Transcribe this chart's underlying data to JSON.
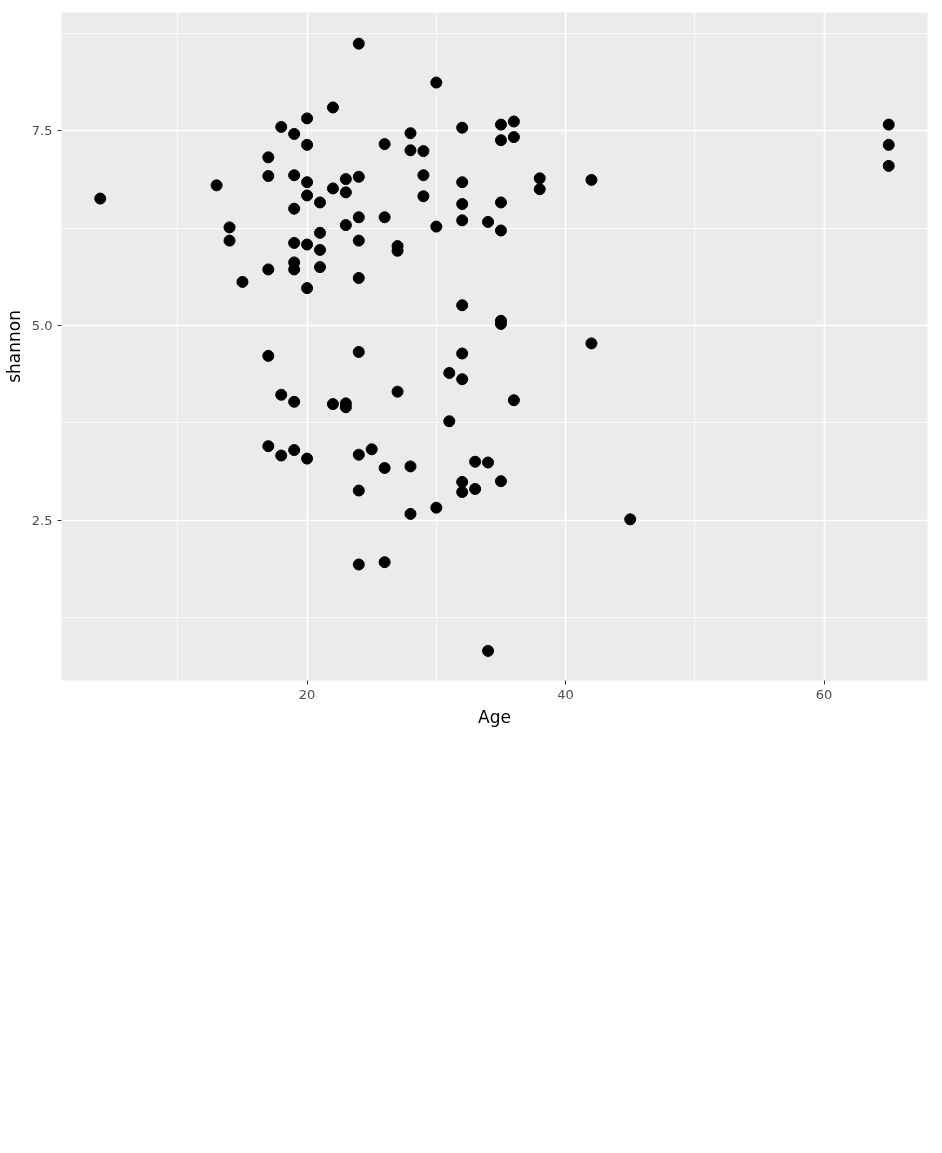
{
  "chart_data": {
    "type": "scatter",
    "xlabel": "Age",
    "ylabel": "shannon",
    "xlim": [
      1,
      68
    ],
    "ylim": [
      0.44,
      9.02
    ],
    "xticks": [
      20,
      40,
      60
    ],
    "yticks": [
      {
        "value": 2.5,
        "label": "2.5"
      },
      {
        "value": 5.0,
        "label": "5.0"
      },
      {
        "value": 7.5,
        "label": "7.5"
      }
    ],
    "grid": true,
    "marker": "circle",
    "series": [
      {
        "color": "#000000",
        "x": [
          4,
          13,
          14,
          14,
          15,
          17,
          17,
          17,
          17,
          17,
          18,
          18,
          18,
          19,
          19,
          19,
          19,
          19,
          19,
          19,
          19,
          20,
          20,
          20,
          20,
          20,
          20,
          20,
          21,
          21,
          21,
          21,
          22,
          22,
          22,
          23,
          23,
          23,
          23,
          23,
          24,
          24,
          24,
          24,
          24,
          24,
          24,
          24,
          24,
          25,
          26,
          26,
          26,
          26,
          27,
          27,
          27,
          28,
          28,
          28,
          28,
          29,
          29,
          29,
          30,
          30,
          30,
          31,
          31,
          32,
          32,
          32,
          32,
          32,
          32,
          32,
          32,
          32,
          33,
          33,
          34,
          34,
          34,
          35,
          35,
          35,
          35,
          35,
          35,
          35,
          36,
          36,
          36,
          38,
          38,
          42,
          42,
          45,
          65,
          65,
          65
        ],
        "values": [
          6.63,
          6.8,
          6.26,
          6.09,
          5.56,
          7.16,
          6.92,
          5.72,
          4.61,
          3.45,
          7.55,
          4.11,
          3.33,
          7.46,
          6.93,
          6.5,
          6.06,
          5.81,
          5.72,
          4.02,
          3.4,
          7.66,
          7.32,
          6.84,
          6.67,
          6.04,
          5.48,
          3.29,
          6.58,
          6.19,
          5.97,
          5.75,
          7.8,
          6.76,
          3.99,
          6.88,
          6.71,
          6.29,
          4.0,
          3.95,
          8.62,
          6.91,
          6.39,
          6.09,
          5.61,
          4.66,
          3.34,
          2.88,
          1.93,
          3.41,
          7.33,
          6.39,
          3.17,
          1.96,
          6.02,
          5.96,
          4.15,
          7.47,
          7.25,
          3.19,
          2.58,
          7.24,
          6.93,
          6.66,
          8.12,
          6.27,
          2.66,
          4.39,
          3.77,
          7.54,
          6.84,
          6.56,
          6.35,
          5.26,
          4.64,
          4.31,
          2.99,
          2.86,
          3.25,
          2.9,
          6.33,
          3.24,
          0.82,
          7.58,
          7.38,
          6.58,
          6.22,
          5.06,
          5.02,
          3.0,
          7.62,
          7.42,
          4.04,
          6.89,
          6.75,
          6.87,
          4.77,
          2.51,
          7.58,
          7.32,
          7.05
        ]
      }
    ]
  }
}
